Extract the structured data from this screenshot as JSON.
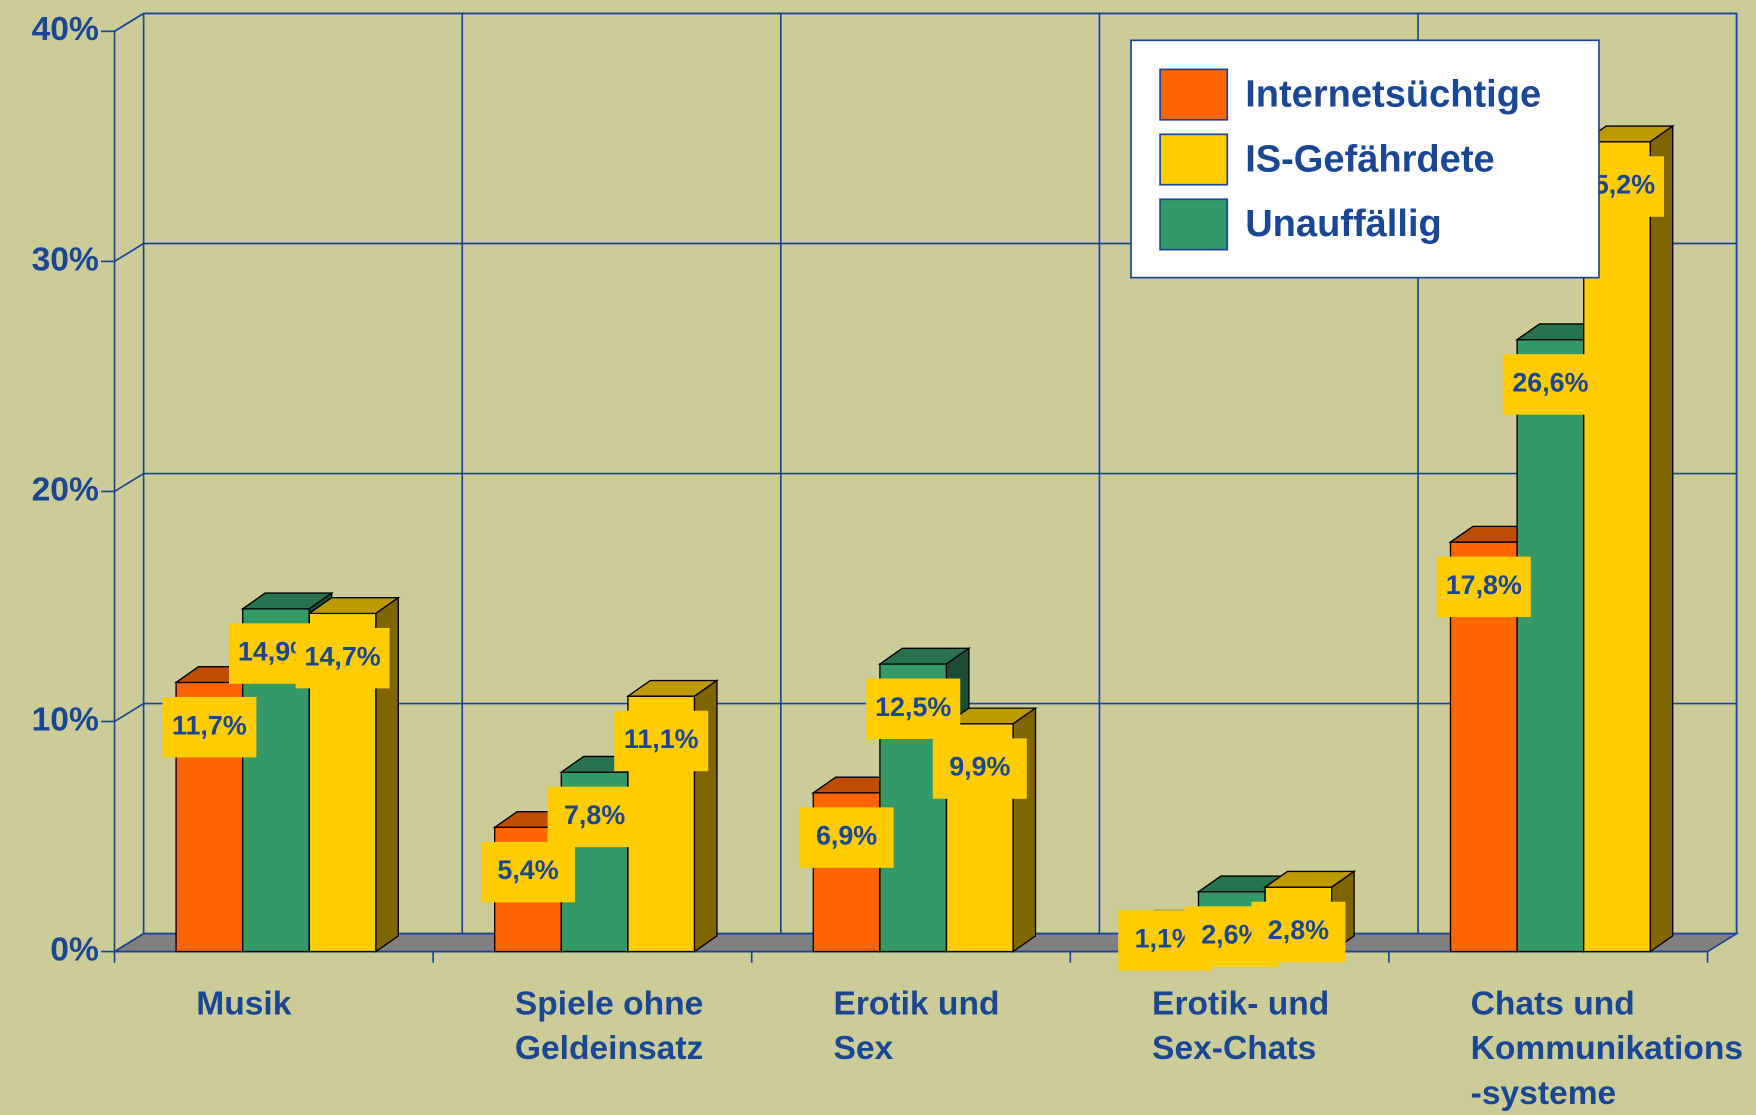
{
  "chart_data": {
    "type": "bar3d",
    "categories": [
      [
        "Musik"
      ],
      [
        "Spiele ohne",
        "Geldeinsatz"
      ],
      [
        "Erotik und",
        "Sex"
      ],
      [
        "Erotik- und",
        "Sex-Chats"
      ],
      [
        "Chats und",
        "Kommunikations",
        "-systeme"
      ]
    ],
    "series": [
      {
        "name": "Internetsüchtige",
        "color": "#ff6600",
        "values": [
          11.7,
          5.4,
          6.9,
          1.1,
          17.8
        ],
        "value_labels": [
          "11,7%",
          "5,4%",
          "6,9%",
          "1,1%",
          "17,8%"
        ]
      },
      {
        "name": "Unauffällig",
        "color": "#339966",
        "values": [
          14.9,
          7.8,
          12.5,
          2.6,
          26.6
        ],
        "value_labels": [
          "14,9%",
          "7,8%",
          "12,5%",
          "2,6%",
          "26,6%"
        ]
      },
      {
        "name": "IS-Gefährdete",
        "color": "#ffcc00",
        "values": [
          14.7,
          11.1,
          9.9,
          2.8,
          35.2
        ],
        "value_labels": [
          "14,7%",
          "11,1%",
          "9,9%",
          "2,8%",
          "35,2%"
        ]
      }
    ],
    "ylim": [
      0,
      40
    ],
    "yticks": [
      {
        "value": 0,
        "label": "0%"
      },
      {
        "value": 10,
        "label": "10%"
      },
      {
        "value": 20,
        "label": "20%"
      },
      {
        "value": 30,
        "label": "30%"
      },
      {
        "value": 40,
        "label": "40%"
      }
    ],
    "grid": true,
    "legend": "upper right"
  }
}
